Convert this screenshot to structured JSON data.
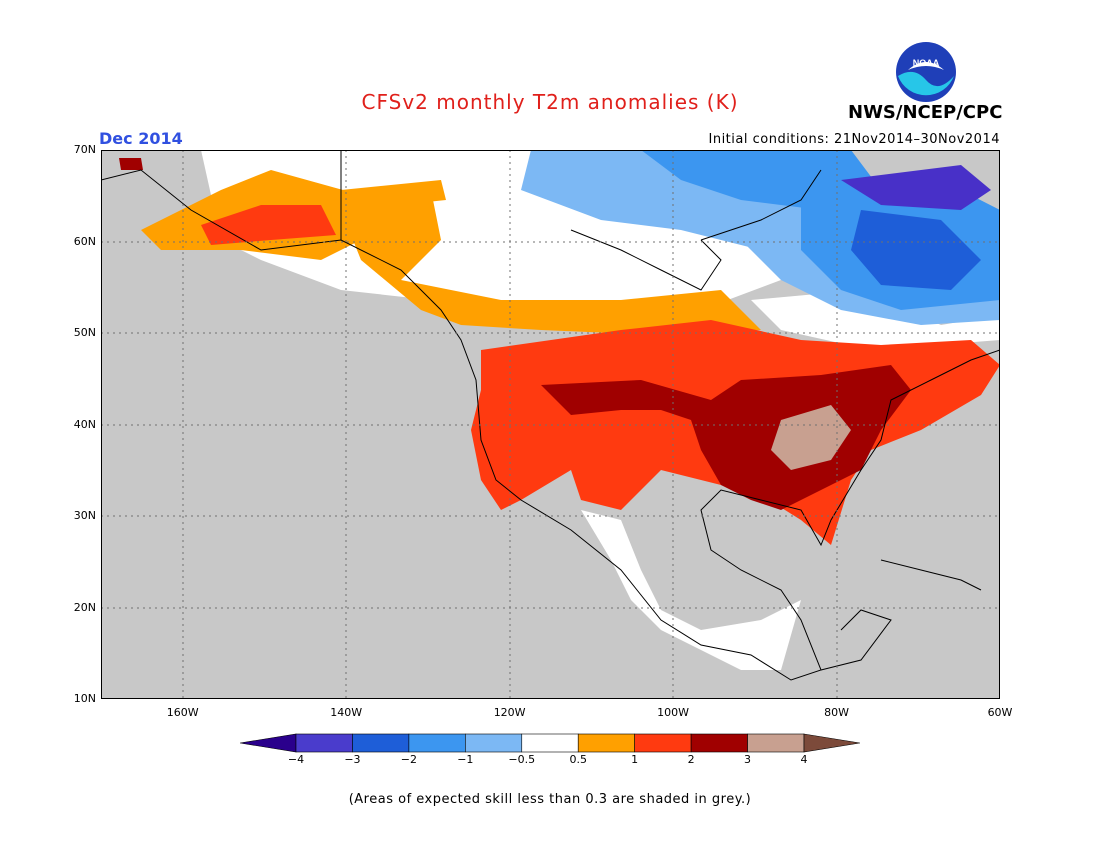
{
  "header": {
    "title": "CFSv2 monthly T2m anomalies (K)",
    "month": "Dec 2014",
    "initial_conditions": "Initial conditions: 21Nov2014–30Nov2014",
    "org": "NWS/NCEP/CPC",
    "logo_text": "NOAA"
  },
  "map": {
    "lon_range": [
      -170,
      -60
    ],
    "lat_range": [
      10,
      70
    ],
    "lat_labels": [
      "70N",
      "60N",
      "50N",
      "40N",
      "30N",
      "20N",
      "10N"
    ],
    "lon_labels": [
      "160W",
      "140W",
      "120W",
      "100W",
      "80W",
      "60W"
    ],
    "colors": {
      "grey": "#c8c8c8",
      "neutral": "#ffffff",
      "p05_1": "#ffa000",
      "p1_2": "#ff3a10",
      "p2_3": "#a00000",
      "p3_4": "#c8a090",
      "m05_1": "#7cb8f4",
      "m1_2": "#3c96f0",
      "m2_3": "#1e5ed8",
      "m3_4": "#4830c8"
    }
  },
  "legend": {
    "tick_labels": [
      "−4",
      "−3",
      "−2",
      "−1",
      "−0.5",
      "0.5",
      "1",
      "2",
      "3",
      "4"
    ],
    "colors": [
      "#2a008c",
      "#4a3ccc",
      "#1e5ed8",
      "#3c96f0",
      "#7cb8f4",
      "#ffffff",
      "#ffa000",
      "#ff3a10",
      "#a00000",
      "#c8a090",
      "#7c4a3a"
    ]
  },
  "footer": {
    "skill_note": "(Areas of expected skill less than 0.3 are shaded in grey.)"
  }
}
